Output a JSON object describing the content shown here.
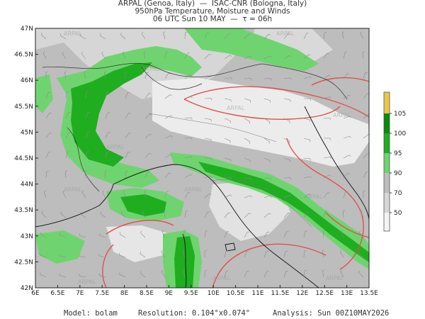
{
  "header": {
    "line1": "ARPAL (Genoa, Italy)  —  ISAC-CNR (Bologna, Italy)",
    "line2": "950hPa Temperature, Moisture and Winds",
    "line3": "06 UTC Sun 10 MAY  —  τ = 06h"
  },
  "watermark": "ARPAL",
  "axes": {
    "lon_labels": [
      "6E",
      "6.5E",
      "7E",
      "7.5E",
      "8E",
      "8.5E",
      "9E",
      "9.5E",
      "10E",
      "10.5E",
      "11E",
      "11.5E",
      "12E",
      "12.5E",
      "13E",
      "13.5E"
    ],
    "lat_labels": [
      "42N",
      "42.5N",
      "43N",
      "43.5N",
      "44N",
      "44.5N",
      "45N",
      "45.5N",
      "46N",
      "46.5N",
      "47N"
    ],
    "lon_range": [
      6,
      13.5
    ],
    "lat_range": [
      42,
      47
    ]
  },
  "colorbar": {
    "labels": [
      "50",
      "70",
      "90",
      "95",
      "100",
      "105"
    ],
    "colors": {
      "white": "#f4f4f4",
      "light_gray": "#d6d6d6",
      "gray": "#bdbdbd",
      "light_green": "#6fd46f",
      "green": "#1fae1f",
      "dark_green": "#0a8a0a",
      "yellow": "#e8c84a"
    }
  },
  "isotherm_color": "#e05050",
  "footer": {
    "model_label": "Model:",
    "model_value": "bolam",
    "resolution_label": "Resolution:",
    "resolution_value": "0.104°x0.074°",
    "analysis_label": "Analysis:",
    "analysis_value": "Sun 00Z10MAY2026"
  }
}
